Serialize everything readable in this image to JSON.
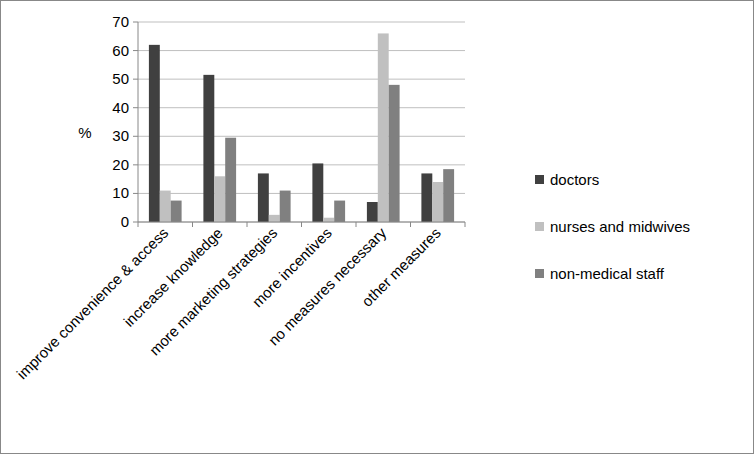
{
  "chart_data": {
    "type": "bar",
    "y_label": "%",
    "categories": [
      "improve convenience & access",
      "increase knowledge",
      "more marketing strategies",
      "more incentives",
      "no measures necessary",
      "other measures"
    ],
    "series": [
      {
        "name": "doctors",
        "color": "#404040",
        "values": [
          62,
          51.5,
          17,
          20.5,
          7,
          17
        ]
      },
      {
        "name": "nurses and midwives",
        "color": "#c0c0c0",
        "values": [
          11,
          16,
          2.5,
          1.5,
          66,
          14
        ]
      },
      {
        "name": "non-medical staff",
        "color": "#808080",
        "values": [
          7.5,
          29.5,
          11,
          7.5,
          48,
          18.5
        ]
      }
    ],
    "ylim": [
      0,
      70
    ],
    "yticks": [
      0,
      10,
      20,
      30,
      40,
      50,
      60,
      70
    ],
    "grid": true,
    "legend": "right"
  }
}
